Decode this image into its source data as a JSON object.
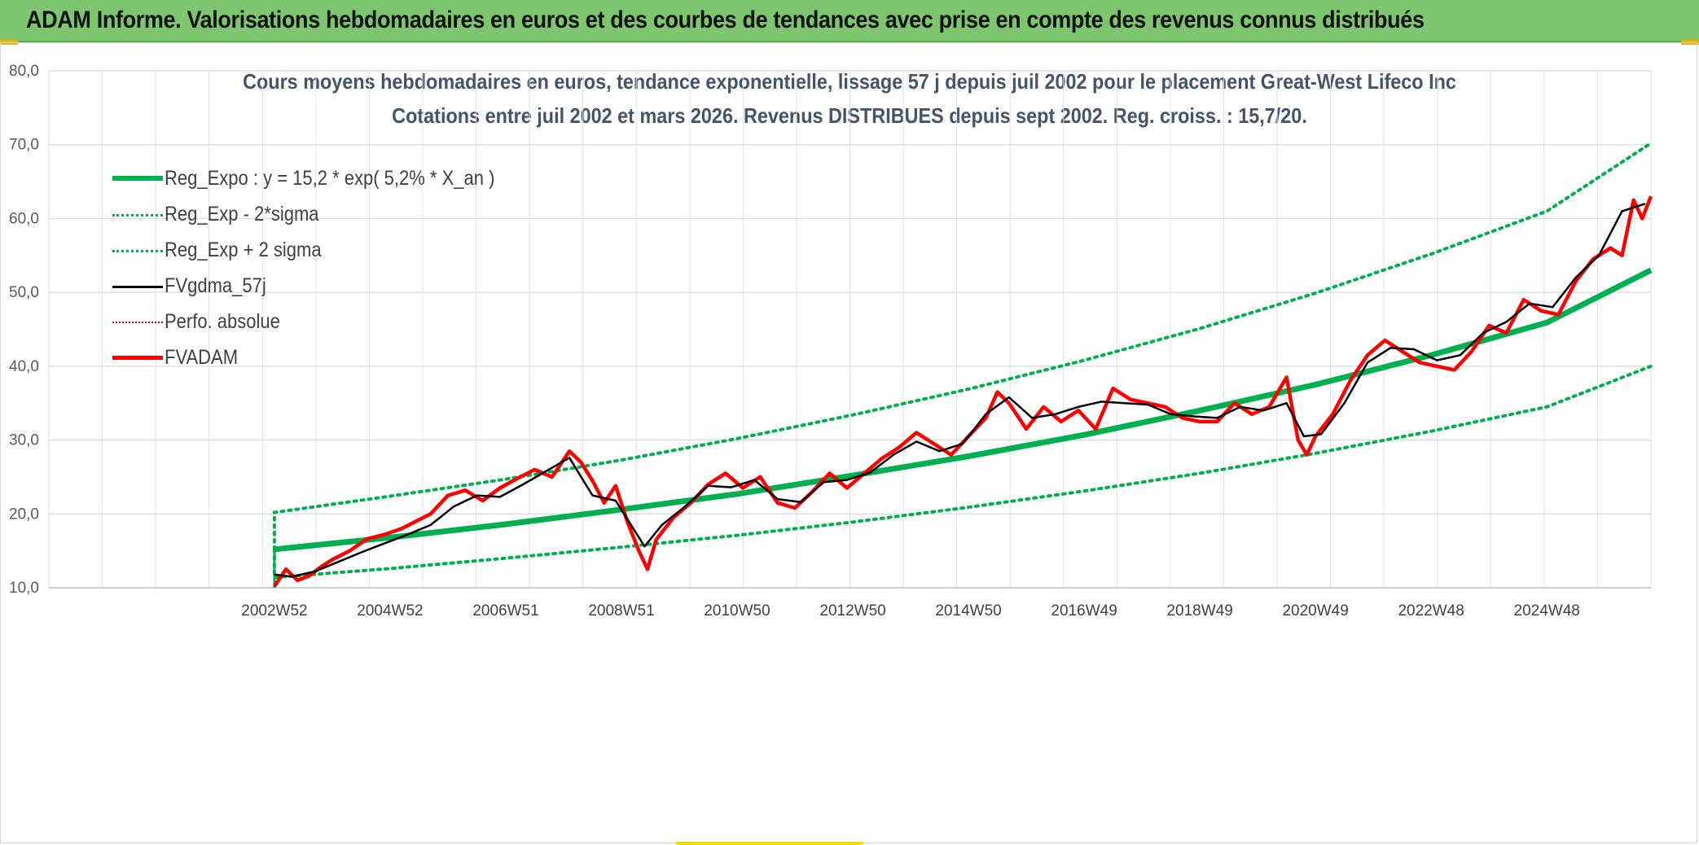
{
  "banner": {
    "title": "ADAM Informe. Valorisations hebdomadaires en euros et des courbes de tendances avec prise en compte des revenus connus distribués"
  },
  "colors": {
    "banner": "#7dc56f",
    "reg_green": "#00b050",
    "adam_red": "#ff0000",
    "mm_black": "#000000",
    "title_text": "#44546a"
  },
  "chart_data": {
    "type": "line",
    "title": "Cours moyens hebdomadaires en euros, tendance exponentielle, lissage 57 j depuis juil 2002 pour le placement Great-West Lifeco Inc",
    "subtitle": "Cotations entre juil 2002 et mars 2026. Revenus DISTRIBUES depuis sept 2002. Reg. croiss. : 15,7/20.",
    "xlabel": "",
    "ylabel": "",
    "ylim": [
      10,
      80
    ],
    "xlim": [
      1998.6,
      2026.3
    ],
    "y_ticks": [
      "10,0",
      "20,0",
      "30,0",
      "40,0",
      "50,0",
      "60,0",
      "70,0",
      "80,0"
    ],
    "x_ticks": [
      {
        "label": "2002W52",
        "x": 2002.5
      },
      {
        "label": "2004W52",
        "x": 2004.5
      },
      {
        "label": "2006W51",
        "x": 2006.5
      },
      {
        "label": "2008W51",
        "x": 2008.5
      },
      {
        "label": "2010W50",
        "x": 2010.5
      },
      {
        "label": "2012W50",
        "x": 2012.5
      },
      {
        "label": "2014W50",
        "x": 2014.5
      },
      {
        "label": "2016W49",
        "x": 2016.5
      },
      {
        "label": "2018W49",
        "x": 2018.5
      },
      {
        "label": "2020W49",
        "x": 2020.5
      },
      {
        "label": "2022W48",
        "x": 2022.5
      },
      {
        "label": "2024W48",
        "x": 2024.5
      }
    ],
    "legend": [
      {
        "key": "reg",
        "label": "Reg_Expo : y = 15,2 * exp( 5,2% *  X_an )"
      },
      {
        "key": "reg_lo",
        "label": "Reg_Exp - 2*sigma"
      },
      {
        "key": "reg_hi",
        "label": "Reg_Exp + 2 sigma"
      },
      {
        "key": "mm",
        "label": "FVgdma_57j"
      },
      {
        "key": "perf",
        "label": "Perfo. absolue"
      },
      {
        "key": "adam",
        "label": "FVADAM"
      }
    ],
    "series": [
      {
        "name": "Reg_Expo",
        "x": [
          2002.5,
          2004.5,
          2006.5,
          2008.5,
          2010.5,
          2012.5,
          2014.5,
          2016.5,
          2018.5,
          2020.5,
          2022.5,
          2024.5,
          2026.3
        ],
        "values": [
          15.2,
          16.8,
          18.6,
          20.6,
          22.7,
          25.2,
          27.8,
          30.7,
          34.0,
          37.5,
          41.5,
          45.9,
          53.0
        ]
      },
      {
        "name": "Reg_Exp - 2*sigma",
        "x": [
          2002.5,
          2004.5,
          2006.5,
          2008.5,
          2010.5,
          2012.5,
          2014.5,
          2016.5,
          2018.5,
          2020.5,
          2022.5,
          2024.5,
          2026.3
        ],
        "values": [
          11.4,
          12.6,
          14.0,
          15.5,
          17.1,
          18.9,
          20.9,
          23.1,
          25.5,
          28.2,
          31.2,
          34.5,
          40.0
        ]
      },
      {
        "name": "Reg_Exp + 2 sigma",
        "x": [
          2002.5,
          2004.5,
          2006.5,
          2008.5,
          2010.5,
          2012.5,
          2014.5,
          2016.5,
          2018.5,
          2020.5,
          2022.5,
          2024.5,
          2026.3
        ],
        "values": [
          20.2,
          22.4,
          24.7,
          27.3,
          30.2,
          33.4,
          36.9,
          40.8,
          45.1,
          49.9,
          55.2,
          61.0,
          70.2
        ]
      },
      {
        "name": "FVgdma_57j",
        "x": [
          2002.5,
          2002.8,
          2003.2,
          2003.6,
          2004.0,
          2004.4,
          2004.8,
          2005.2,
          2005.6,
          2006.0,
          2006.4,
          2006.8,
          2007.2,
          2007.6,
          2008.0,
          2008.4,
          2008.9,
          2009.2,
          2009.6,
          2010.0,
          2010.4,
          2010.8,
          2011.2,
          2011.6,
          2012.0,
          2012.4,
          2012.8,
          2013.2,
          2013.6,
          2014.0,
          2014.4,
          2014.8,
          2015.2,
          2015.6,
          2016.0,
          2016.4,
          2016.8,
          2017.2,
          2017.6,
          2018.0,
          2018.4,
          2018.8,
          2019.2,
          2019.6,
          2020.0,
          2020.3,
          2020.6,
          2021.0,
          2021.4,
          2021.8,
          2022.2,
          2022.6,
          2023.0,
          2023.4,
          2023.8,
          2024.2,
          2024.6,
          2025.0,
          2025.4,
          2025.8,
          2026.2
        ],
        "values": [
          11.8,
          11.5,
          12.2,
          13.5,
          14.8,
          16.0,
          17.2,
          18.5,
          21.0,
          22.5,
          22.3,
          24.0,
          25.8,
          27.6,
          22.5,
          21.8,
          15.6,
          18.5,
          21.0,
          23.8,
          23.6,
          24.6,
          22.0,
          21.6,
          24.3,
          24.6,
          25.6,
          28.0,
          29.8,
          28.5,
          29.5,
          33.5,
          35.8,
          33.0,
          33.5,
          34.5,
          35.2,
          35.0,
          34.8,
          33.5,
          33.2,
          33.0,
          34.5,
          34.0,
          35.0,
          30.5,
          30.8,
          35.0,
          40.5,
          42.5,
          42.3,
          40.8,
          41.5,
          44.5,
          46.0,
          48.5,
          48.0,
          52.0,
          55.0,
          61.0,
          62.0
        ]
      },
      {
        "name": "FVADAM",
        "x": [
          2002.5,
          2002.7,
          2002.9,
          2003.1,
          2003.3,
          2003.5,
          2003.8,
          2004.1,
          2004.4,
          2004.7,
          2005.0,
          2005.2,
          2005.5,
          2005.8,
          2006.1,
          2006.4,
          2006.7,
          2007.0,
          2007.3,
          2007.6,
          2007.8,
          2008.0,
          2008.2,
          2008.4,
          2008.6,
          2008.8,
          2008.95,
          2009.1,
          2009.4,
          2009.7,
          2010.0,
          2010.3,
          2010.6,
          2010.9,
          2011.2,
          2011.5,
          2011.8,
          2012.1,
          2012.4,
          2012.7,
          2013.0,
          2013.3,
          2013.6,
          2013.9,
          2014.2,
          2014.5,
          2014.8,
          2015.0,
          2015.2,
          2015.5,
          2015.8,
          2016.1,
          2016.4,
          2016.7,
          2017.0,
          2017.3,
          2017.6,
          2017.9,
          2018.2,
          2018.5,
          2018.8,
          2019.1,
          2019.4,
          2019.7,
          2020.0,
          2020.2,
          2020.35,
          2020.5,
          2020.8,
          2021.1,
          2021.4,
          2021.7,
          2022.0,
          2022.3,
          2022.6,
          2022.9,
          2023.2,
          2023.5,
          2023.8,
          2024.1,
          2024.4,
          2024.7,
          2025.0,
          2025.3,
          2025.6,
          2025.8,
          2026.0,
          2026.15,
          2026.3
        ],
        "values": [
          10.2,
          12.5,
          11.0,
          11.6,
          12.8,
          13.8,
          15.0,
          16.6,
          17.2,
          18.0,
          19.2,
          20.0,
          22.5,
          23.2,
          21.8,
          23.5,
          24.8,
          26.0,
          25.0,
          28.5,
          27.0,
          24.5,
          21.5,
          23.8,
          19.0,
          15.0,
          12.5,
          16.5,
          19.5,
          21.5,
          24.0,
          25.5,
          23.5,
          25.0,
          21.5,
          20.8,
          23.0,
          25.5,
          23.5,
          25.5,
          27.5,
          29.0,
          31.0,
          29.5,
          28.0,
          30.5,
          33.0,
          36.5,
          35.0,
          31.5,
          34.5,
          32.5,
          34.0,
          31.5,
          37.0,
          35.5,
          35.0,
          34.5,
          33.0,
          32.5,
          32.5,
          35.0,
          33.5,
          34.5,
          38.5,
          30.0,
          28.0,
          30.5,
          33.5,
          38.0,
          41.5,
          43.5,
          42.0,
          40.5,
          40.0,
          39.5,
          42.0,
          45.5,
          44.5,
          49.0,
          47.5,
          47.0,
          51.5,
          54.5,
          56.0,
          55.0,
          62.5,
          60.0,
          63.0
        ]
      }
    ]
  }
}
